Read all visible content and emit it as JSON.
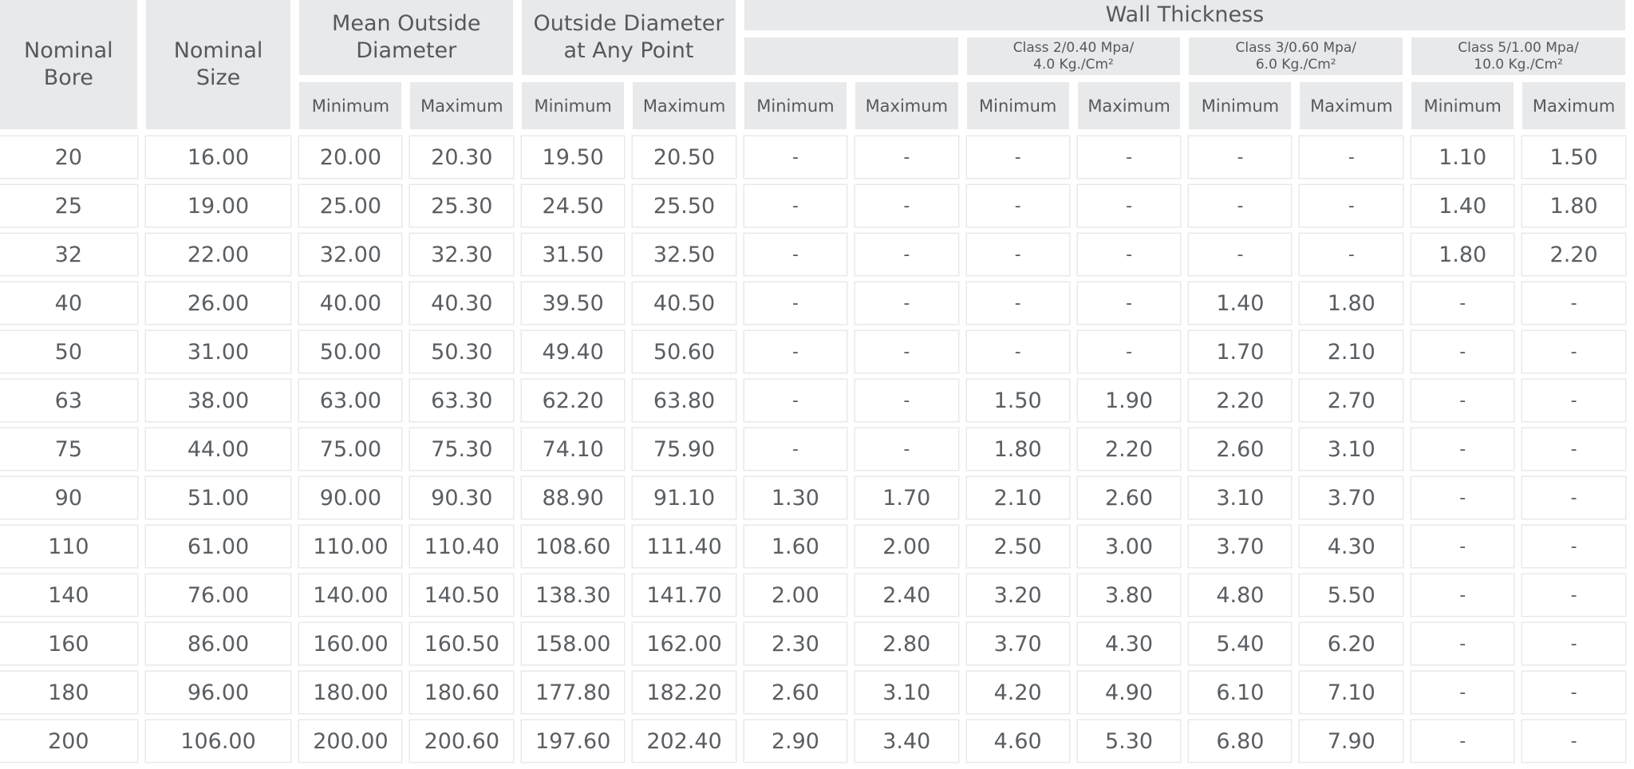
{
  "headers": {
    "nominal_bore": "Nominal Bore",
    "nominal_size": "Nominal Size",
    "mean_outside_diameter": "Mean Outside Diameter",
    "outside_diameter_any_point": "Outside Diameter at Any Point",
    "wall_thickness": "Wall Thickness",
    "wall_class_blank": "",
    "class_2": {
      "line1": "Class 2/0.40 Mpa/",
      "line2": "4.0 Kg./Cm²"
    },
    "class_3": {
      "line1": "Class 3/0.60 Mpa/",
      "line2": "6.0 Kg./Cm²"
    },
    "class_5": {
      "line1": "Class 5/1.00 Mpa/",
      "line2": "10.0 Kg./Cm²"
    },
    "minimum": "Minimum",
    "maximum": "Maximum"
  },
  "rows": [
    [
      "20",
      "16.00",
      "20.00",
      "20.30",
      "19.50",
      "20.50",
      "-",
      "-",
      "-",
      "-",
      "-",
      "-",
      "1.10",
      "1.50"
    ],
    [
      "25",
      "19.00",
      "25.00",
      "25.30",
      "24.50",
      "25.50",
      "-",
      "-",
      "-",
      "-",
      "-",
      "-",
      "1.40",
      "1.80"
    ],
    [
      "32",
      "22.00",
      "32.00",
      "32.30",
      "31.50",
      "32.50",
      "-",
      "-",
      "-",
      "-",
      "-",
      "-",
      "1.80",
      "2.20"
    ],
    [
      "40",
      "26.00",
      "40.00",
      "40.30",
      "39.50",
      "40.50",
      "-",
      "-",
      "-",
      "-",
      "1.40",
      "1.80",
      "-",
      "-"
    ],
    [
      "50",
      "31.00",
      "50.00",
      "50.30",
      "49.40",
      "50.60",
      "-",
      "-",
      "-",
      "-",
      "1.70",
      "2.10",
      "-",
      "-"
    ],
    [
      "63",
      "38.00",
      "63.00",
      "63.30",
      "62.20",
      "63.80",
      "-",
      "-",
      "1.50",
      "1.90",
      "2.20",
      "2.70",
      "-",
      "-"
    ],
    [
      "75",
      "44.00",
      "75.00",
      "75.30",
      "74.10",
      "75.90",
      "-",
      "-",
      "1.80",
      "2.20",
      "2.60",
      "3.10",
      "-",
      "-"
    ],
    [
      "90",
      "51.00",
      "90.00",
      "90.30",
      "88.90",
      "91.10",
      "1.30",
      "1.70",
      "2.10",
      "2.60",
      "3.10",
      "3.70",
      "-",
      "-"
    ],
    [
      "110",
      "61.00",
      "110.00",
      "110.40",
      "108.60",
      "111.40",
      "1.60",
      "2.00",
      "2.50",
      "3.00",
      "3.70",
      "4.30",
      "-",
      "-"
    ],
    [
      "140",
      "76.00",
      "140.00",
      "140.50",
      "138.30",
      "141.70",
      "2.00",
      "2.40",
      "3.20",
      "3.80",
      "4.80",
      "5.50",
      "-",
      "-"
    ],
    [
      "160",
      "86.00",
      "160.00",
      "160.50",
      "158.00",
      "162.00",
      "2.30",
      "2.80",
      "3.70",
      "4.30",
      "5.40",
      "6.20",
      "-",
      "-"
    ],
    [
      "180",
      "96.00",
      "180.00",
      "180.60",
      "177.80",
      "182.20",
      "2.60",
      "3.10",
      "4.20",
      "4.90",
      "6.10",
      "7.10",
      "-",
      "-"
    ],
    [
      "200",
      "106.00",
      "200.00",
      "200.60",
      "197.60",
      "202.40",
      "2.90",
      "3.40",
      "4.60",
      "5.30",
      "6.80",
      "7.90",
      "-",
      "-"
    ]
  ]
}
